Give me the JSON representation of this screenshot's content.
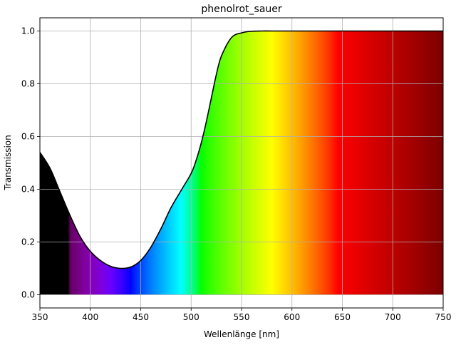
{
  "chart_data": {
    "type": "area",
    "title": "phenolrot_sauer",
    "xlabel": "Wellenlänge [nm]",
    "ylabel": "Transmission",
    "xlim": [
      350,
      750
    ],
    "ylim": [
      -0.05,
      1.05
    ],
    "grid": true,
    "x_ticks": [
      350,
      400,
      450,
      500,
      550,
      600,
      650,
      700,
      750
    ],
    "x_tick_labels": [
      "350",
      "400",
      "450",
      "500",
      "550",
      "600",
      "650",
      "700",
      "750"
    ],
    "y_ticks": [
      0.0,
      0.2,
      0.4,
      0.6,
      0.8,
      1.0
    ],
    "y_tick_labels": [
      "0.0",
      "0.2",
      "0.4",
      "0.6",
      "0.8",
      "1.0"
    ],
    "line_color": "#000000",
    "fill": "visible-spectrum colors by wavelength",
    "series": [
      {
        "x": [
          350,
          360,
          370,
          380,
          390,
          400,
          410,
          420,
          430,
          440,
          450,
          460,
          470,
          480,
          490,
          500,
          505,
          510,
          515,
          520,
          525,
          530,
          540,
          550,
          560,
          570,
          580,
          600,
          650,
          700,
          750
        ],
        "y": [
          0.54,
          0.48,
          0.39,
          0.3,
          0.22,
          0.165,
          0.13,
          0.108,
          0.1,
          0.105,
          0.13,
          0.18,
          0.25,
          0.33,
          0.395,
          0.46,
          0.51,
          0.575,
          0.655,
          0.745,
          0.835,
          0.905,
          0.975,
          0.993,
          0.999,
          1.0,
          1.0,
          1.0,
          1.0,
          1.0,
          1.0
        ]
      }
    ]
  }
}
